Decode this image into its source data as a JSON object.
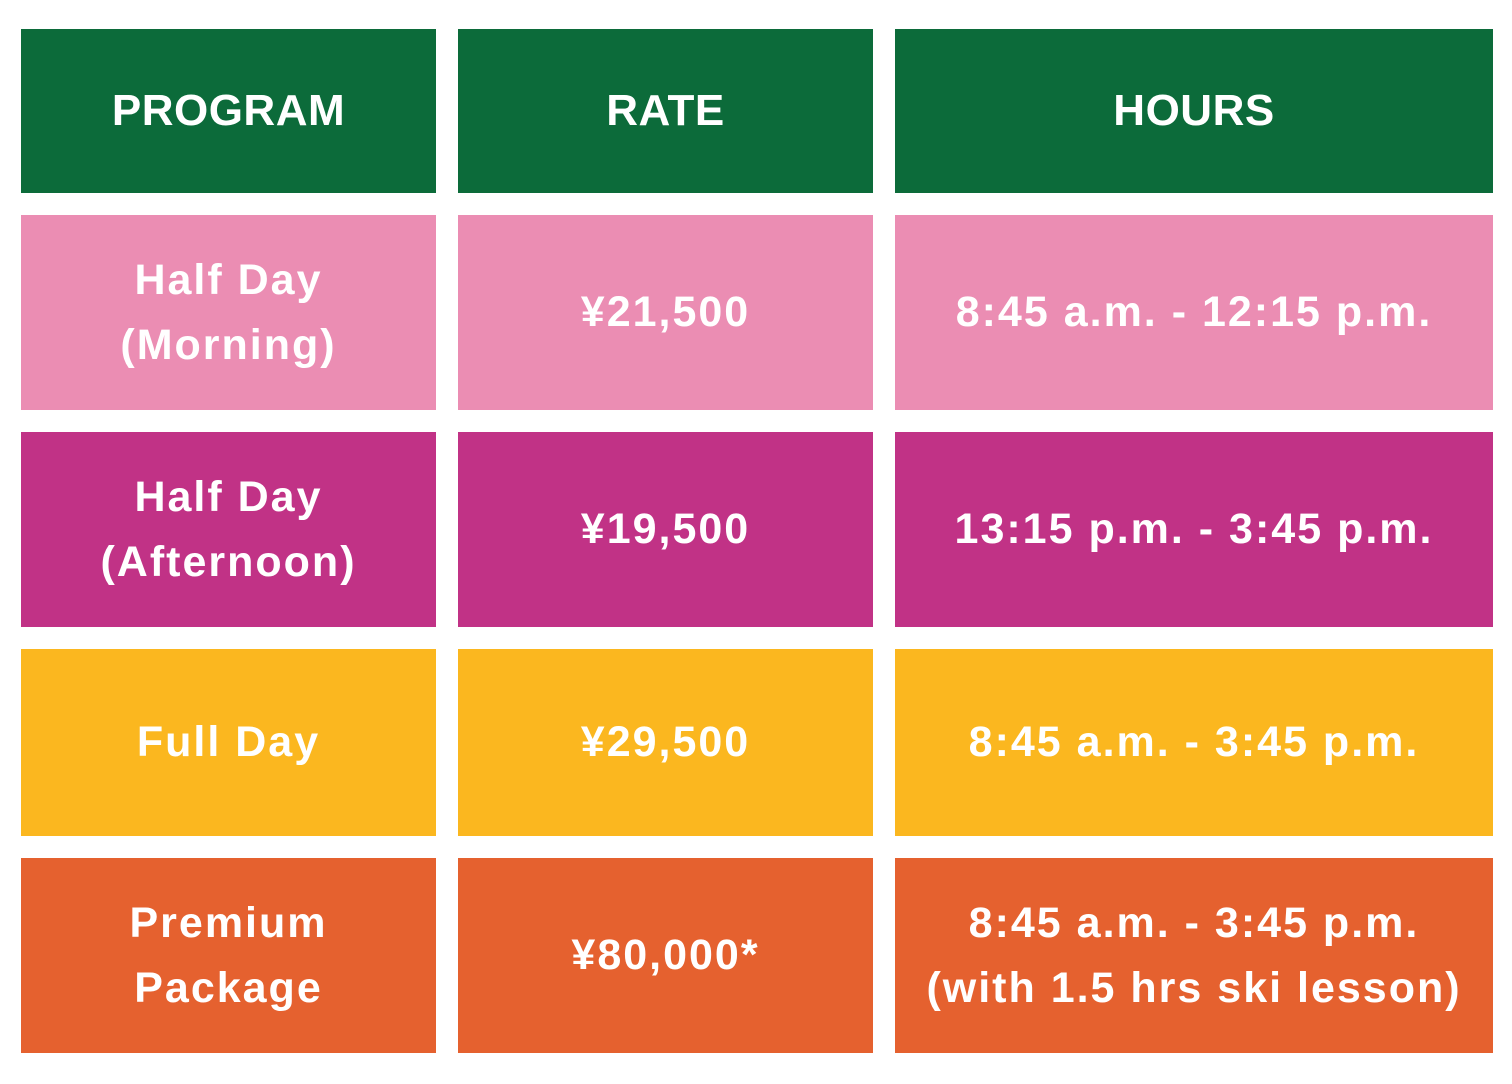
{
  "header": {
    "bg": "#0c6b3a",
    "program": "PROGRAM",
    "rate": "RATE",
    "hours": "HOURS"
  },
  "rows": [
    {
      "bg": "#eb8db3",
      "program": "Half Day\n(Morning)",
      "rate": "¥21,500",
      "hours": "8:45 a.m. - 12:15 p.m."
    },
    {
      "bg": "#c13286",
      "program": "Half Day\n(Afternoon)",
      "rate": "¥19,500",
      "hours": "13:15 p.m. - 3:45 p.m."
    },
    {
      "bg": "#fbb71f",
      "program": "Full Day",
      "rate": "¥29,500",
      "hours": "8:45 a.m. - 3:45 p.m."
    },
    {
      "bg": "#e5612f",
      "program": "Premium\nPackage",
      "rate": "¥80,000*",
      "hours": "8:45 a.m. - 3:45 p.m.\n(with 1.5 hrs ski lesson)"
    }
  ]
}
